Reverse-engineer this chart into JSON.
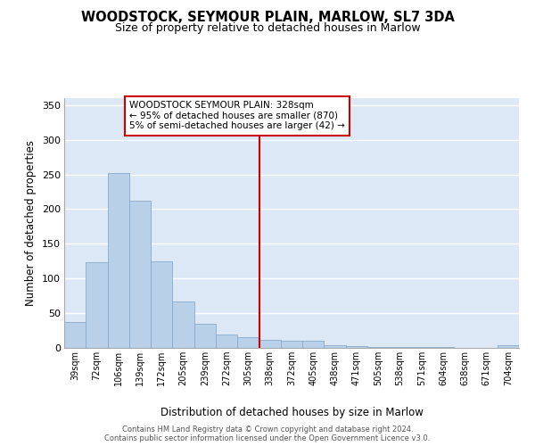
{
  "title": "WOODSTOCK, SEYMOUR PLAIN, MARLOW, SL7 3DA",
  "subtitle": "Size of property relative to detached houses in Marlow",
  "xlabel": "Distribution of detached houses by size in Marlow",
  "ylabel": "Number of detached properties",
  "categories": [
    "39sqm",
    "72sqm",
    "106sqm",
    "139sqm",
    "172sqm",
    "205sqm",
    "239sqm",
    "272sqm",
    "305sqm",
    "338sqm",
    "372sqm",
    "405sqm",
    "438sqm",
    "471sqm",
    "505sqm",
    "538sqm",
    "571sqm",
    "604sqm",
    "638sqm",
    "671sqm",
    "704sqm"
  ],
  "values": [
    37,
    124,
    252,
    212,
    125,
    67,
    35,
    19,
    15,
    11,
    10,
    10,
    4,
    2,
    1,
    1,
    1,
    1,
    0,
    0,
    4
  ],
  "bar_color": "#b8d0e8",
  "bar_edge_color": "#88aacc",
  "background_color": "#dce8f5",
  "grid_color": "#ffffff",
  "vline_idx": 8.5,
  "vline_color": "#cc0000",
  "annotation_text": "WOODSTOCK SEYMOUR PLAIN: 328sqm\n← 95% of detached houses are smaller (870)\n5% of semi-detached houses are larger (42) →",
  "annotation_box_facecolor": "#ffffff",
  "annotation_box_edgecolor": "#cc0000",
  "footer_text": "Contains HM Land Registry data © Crown copyright and database right 2024.\nContains public sector information licensed under the Open Government Licence v3.0.",
  "ylim": [
    0,
    360
  ],
  "yticks": [
    0,
    50,
    100,
    150,
    200,
    250,
    300,
    350
  ],
  "title_fontsize": 10.5,
  "subtitle_fontsize": 9,
  "xtick_fontsize": 7,
  "ytick_fontsize": 8,
  "ylabel_fontsize": 8.5,
  "xlabel_fontsize": 8.5,
  "annotation_fontsize": 7.5,
  "footer_fontsize": 6.0
}
